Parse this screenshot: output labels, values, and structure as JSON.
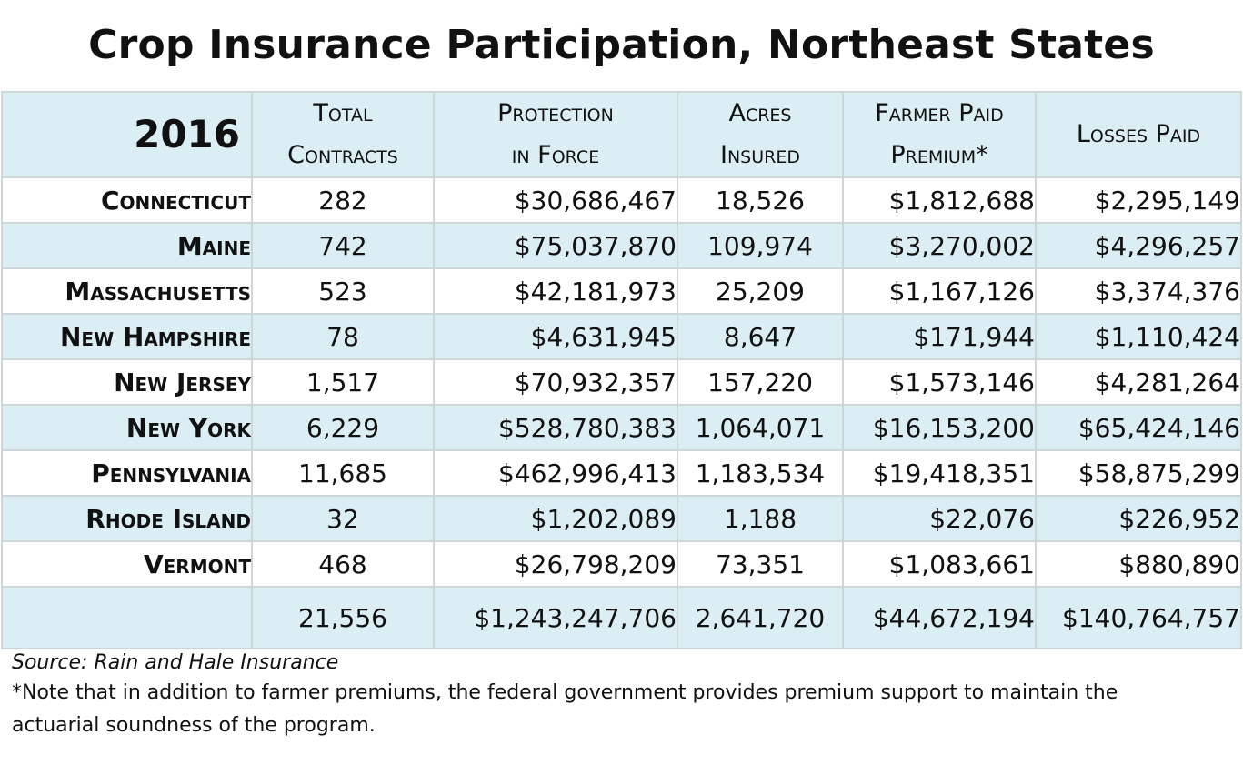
{
  "title": "Crop Insurance Participation, Northeast States",
  "table": {
    "year": "2016",
    "headers": [
      {
        "line1": "Total",
        "line2": "Contracts"
      },
      {
        "line1": "Protection",
        "line2": "in Force"
      },
      {
        "line1": "Acres",
        "line2": "Insured"
      },
      {
        "line1": "Farmer Paid",
        "line2": "Premium*"
      },
      {
        "line1": "Losses Paid",
        "line2": ""
      }
    ],
    "rows": [
      {
        "state": "Connecticut",
        "contracts": "282",
        "protection": "$30,686,467",
        "acres": "18,526",
        "premium": "$1,812,688",
        "losses": "$2,295,149"
      },
      {
        "state": "Maine",
        "contracts": "742",
        "protection": "$75,037,870",
        "acres": "109,974",
        "premium": "$3,270,002",
        "losses": "$4,296,257"
      },
      {
        "state": "Massachusetts",
        "contracts": "523",
        "protection": "$42,181,973",
        "acres": "25,209",
        "premium": "$1,167,126",
        "losses": "$3,374,376"
      },
      {
        "state": "New Hampshire",
        "contracts": "78",
        "protection": "$4,631,945",
        "acres": "8,647",
        "premium": "$171,944",
        "losses": "$1,110,424"
      },
      {
        "state": "New Jersey",
        "contracts": "1,517",
        "protection": "$70,932,357",
        "acres": "157,220",
        "premium": "$1,573,146",
        "losses": "$4,281,264"
      },
      {
        "state": "New York",
        "contracts": "6,229",
        "protection": "$528,780,383",
        "acres": "1,064,071",
        "premium": "$16,153,200",
        "losses": "$65,424,146"
      },
      {
        "state": "Pennsylvania",
        "contracts": "11,685",
        "protection": "$462,996,413",
        "acres": "1,183,534",
        "premium": "$19,418,351",
        "losses": "$58,875,299"
      },
      {
        "state": "Rhode Island",
        "contracts": "32",
        "protection": "$1,202,089",
        "acres": "1,188",
        "premium": "$22,076",
        "losses": "$226,952"
      },
      {
        "state": "Vermont",
        "contracts": "468",
        "protection": "$26,798,209",
        "acres": "73,351",
        "premium": "$1,083,661",
        "losses": "$880,890"
      }
    ],
    "total": {
      "state": "",
      "contracts": "21,556",
      "protection": "$1,243,247,706",
      "acres": "2,641,720",
      "premium": "$44,672,194",
      "losses": "$140,764,757"
    }
  },
  "source": "Source: Rain and Hale Insurance",
  "note": "*Note that in addition to farmer premiums, the federal government provides premium support to maintain the actuarial soundness of the program."
}
